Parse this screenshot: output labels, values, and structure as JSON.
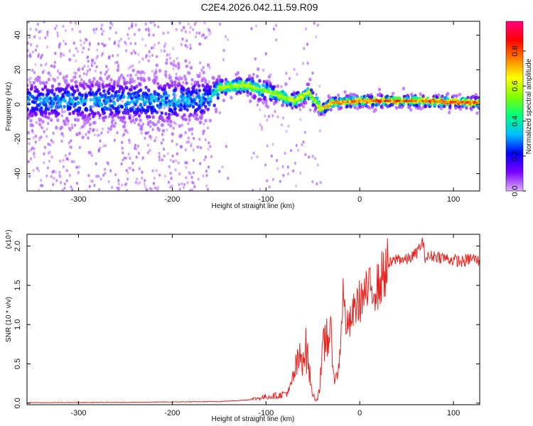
{
  "title": "C2E4.2026.042.11.59.R09",
  "chart_data": [
    {
      "type": "heatmap",
      "panel": "spectrogram",
      "xlabel": "Height of straight line (km)",
      "ylabel": "Frequency (Hz)",
      "xlim": [
        -355,
        128
      ],
      "ylim": [
        -50,
        48
      ],
      "x_ticks": [
        -300,
        -200,
        -100,
        0,
        100
      ],
      "x_tick_labels": [
        "-300",
        "-200",
        "-100",
        "0",
        "100"
      ],
      "y_ticks": [
        -40,
        -20,
        0,
        20,
        40
      ],
      "y_tick_labels": [
        "-40",
        "-20",
        "0",
        "20",
        "40"
      ],
      "colorbar": {
        "label": "Normalized spectral amplitude",
        "range": [
          0,
          0.97
        ],
        "ticks": [
          0.0,
          0.2,
          0.4,
          0.6,
          0.8
        ],
        "tick_labels": [
          "0.0",
          "0.2",
          "0.4",
          "0.6",
          "0.8"
        ],
        "colormap": [
          "#e0b0ff",
          "#7a00ff",
          "#0000ff",
          "#00bfff",
          "#00ff80",
          "#80ff00",
          "#ffff00",
          "#ff8000",
          "#ff0000",
          "#ff0080"
        ]
      },
      "ridge": [
        {
          "x": -355,
          "freq": 2,
          "amp": 0.28,
          "spread": 7
        },
        {
          "x": -200,
          "freq": 2,
          "amp": 0.3,
          "spread": 8
        },
        {
          "x": -160,
          "freq": 3,
          "amp": 0.3,
          "spread": 7
        },
        {
          "x": -150,
          "freq": 10,
          "amp": 0.55,
          "spread": 3
        },
        {
          "x": -120,
          "freq": 11,
          "amp": 0.6,
          "spread": 3
        },
        {
          "x": -110,
          "freq": 9,
          "amp": 0.5,
          "spread": 4
        },
        {
          "x": -90,
          "freq": 6,
          "amp": 0.55,
          "spread": 3
        },
        {
          "x": -70,
          "freq": 2,
          "amp": 0.55,
          "spread": 3
        },
        {
          "x": -55,
          "freq": 7,
          "amp": 0.6,
          "spread": 3
        },
        {
          "x": -42,
          "freq": -3,
          "amp": 0.6,
          "spread": 2
        },
        {
          "x": -30,
          "freq": 1,
          "amp": 0.7,
          "spread": 2
        },
        {
          "x": 0,
          "freq": 2,
          "amp": 0.75,
          "spread": 2
        },
        {
          "x": 60,
          "freq": 2,
          "amp": 0.75,
          "spread": 2
        },
        {
          "x": 128,
          "freq": 1,
          "amp": 0.75,
          "spread": 2
        }
      ]
    },
    {
      "type": "line",
      "panel": "snr",
      "xlabel": "Height of straight line (km)",
      "ylabel": "SNR (10 * v/v)",
      "y_scale_label": "(x10⁴)",
      "xlim": [
        -355,
        128
      ],
      "ylim": [
        -0.02,
        2.15
      ],
      "x_ticks": [
        -300,
        -200,
        -100,
        0,
        100
      ],
      "x_tick_labels": [
        "-300",
        "-200",
        "-100",
        "0",
        "100"
      ],
      "y_ticks": [
        0.0,
        0.5,
        1.0,
        1.5,
        2.0
      ],
      "y_tick_labels": [
        "0.0",
        "0.5",
        "1.0",
        "1.5",
        "2.0"
      ],
      "color": "#e8231f",
      "series": [
        {
          "name": "SNR",
          "x": [
            -355,
            -250,
            -150,
            -120,
            -100,
            -85,
            -75,
            -68,
            -62,
            -58,
            -55,
            -52,
            -48,
            -45,
            -42,
            -38,
            -34,
            -30,
            -27,
            -24,
            -22,
            -20,
            -18,
            -15,
            -12,
            -8,
            -4,
            0,
            5,
            10,
            15,
            20,
            25,
            30,
            33,
            36,
            40,
            50,
            60,
            67,
            70,
            80,
            90,
            100,
            110,
            120,
            128
          ],
          "y": [
            0.005,
            0.01,
            0.02,
            0.04,
            0.08,
            0.1,
            0.15,
            0.45,
            0.6,
            0.7,
            0.55,
            0.2,
            0.05,
            0.05,
            0.3,
            0.75,
            0.95,
            0.7,
            0.3,
            0.35,
            0.5,
            0.9,
            1.4,
            1.05,
            0.95,
            1.1,
            1.25,
            1.3,
            1.38,
            1.42,
            1.5,
            1.48,
            1.65,
            1.75,
            1.78,
            1.8,
            1.85,
            1.82,
            1.9,
            2.05,
            1.85,
            1.88,
            1.85,
            1.82,
            1.8,
            1.85,
            1.8
          ]
        }
      ]
    }
  ]
}
